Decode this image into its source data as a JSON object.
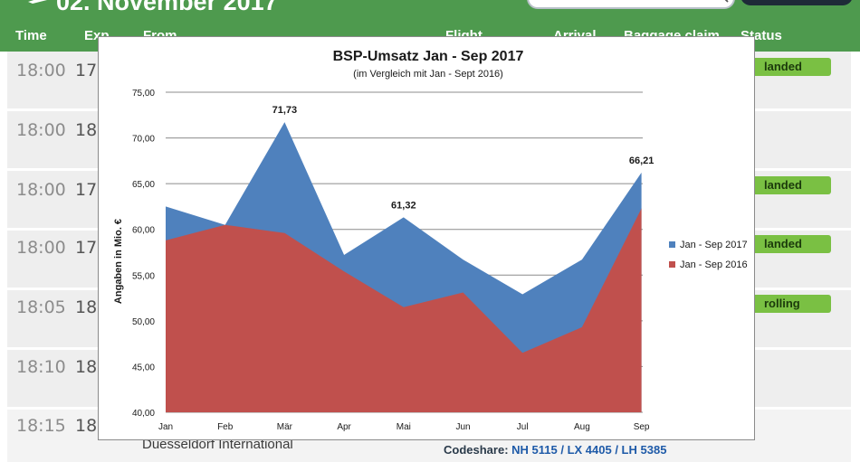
{
  "header": {
    "title": "02. November 2017",
    "columns": [
      "Time",
      "Exp.",
      "From",
      "Flight",
      "Arrival",
      "Baggage claim",
      "Status"
    ]
  },
  "rows": [
    {
      "time": "18:00",
      "exp": "17:",
      "status": "landed"
    },
    {
      "time": "18:00",
      "exp": "18:",
      "status": ""
    },
    {
      "time": "18:00",
      "exp": "17:",
      "status": "landed"
    },
    {
      "time": "18:00",
      "exp": "17:",
      "status": "landed"
    },
    {
      "time": "18:05",
      "exp": "18:",
      "status": "rolling"
    },
    {
      "time": "18:10",
      "exp": "18:",
      "status": ""
    },
    {
      "time": "18:15",
      "exp": "18:",
      "status": ""
    }
  ],
  "footer_row": {
    "airport": "Duesseldorf International",
    "codeshare_label": "Codeshare:",
    "codeshare_codes": "NH 5115 / LX 4405 / LH 5385"
  },
  "colors": {
    "header_green": "#4e9a4e",
    "badge_green": "#7ac043",
    "series_2017": "#4f81bd",
    "series_2016": "#c0504d"
  },
  "chart_data": {
    "type": "area",
    "title": "BSP-Umsatz Jan - Sep 2017",
    "subtitle": "(im Vergleich mit Jan - Sept 2016)",
    "xlabel": "",
    "ylabel": "Angaben in Mio. €",
    "categories": [
      "Jan",
      "Feb",
      "Mär",
      "Apr",
      "Mai",
      "Jun",
      "Jul",
      "Aug",
      "Sep"
    ],
    "y_ticks": [
      "40,00",
      "45,00",
      "50,00",
      "55,00",
      "60,00",
      "65,00",
      "70,00",
      "75,00"
    ],
    "ylim": [
      40,
      75
    ],
    "grid": true,
    "legend_position": "right",
    "series": [
      {
        "name": "Jan - Sep 2017",
        "values": [
          62.5,
          60.5,
          71.73,
          57.2,
          61.32,
          56.7,
          52.9,
          56.7,
          66.21
        ]
      },
      {
        "name": "Jan - Sep 2016",
        "values": [
          58.8,
          60.5,
          59.6,
          55.4,
          51.5,
          53.1,
          46.5,
          49.3,
          62.3
        ]
      }
    ],
    "data_labels": [
      {
        "series": 0,
        "index": 2,
        "text": "71,73"
      },
      {
        "series": 0,
        "index": 4,
        "text": "61,32"
      },
      {
        "series": 0,
        "index": 8,
        "text": "66,21"
      }
    ]
  }
}
